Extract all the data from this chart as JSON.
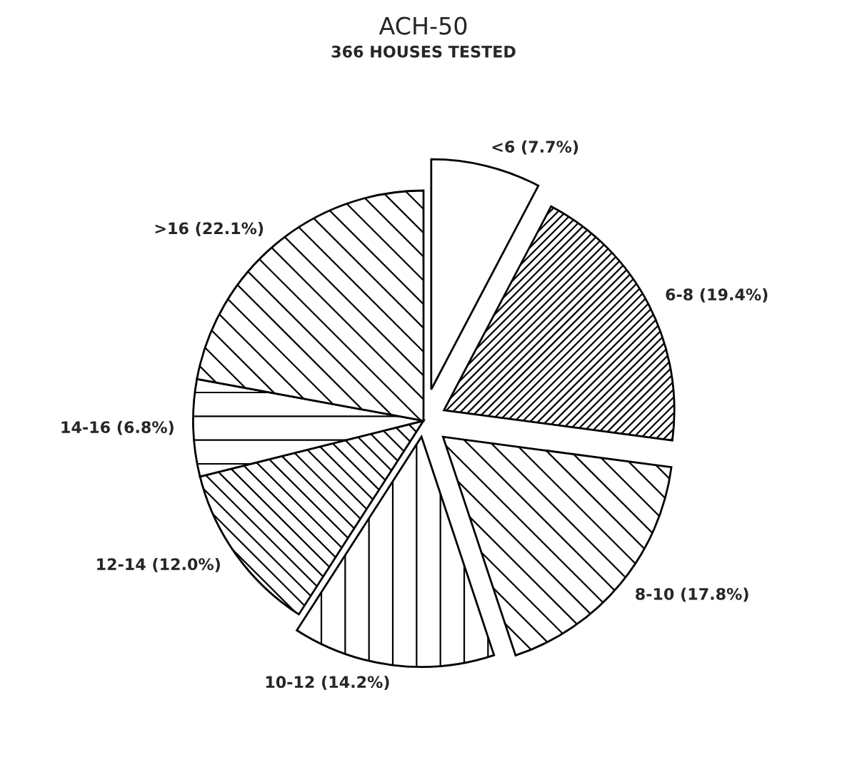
{
  "chart_data": {
    "type": "pie",
    "title": "ACH-50",
    "subtitle": "366 HOUSES TESTED",
    "categories": [
      "<6",
      "6-8",
      "8-10",
      "10-12",
      "12-14",
      "14-16",
      ">16"
    ],
    "values": [
      7.7,
      19.4,
      17.8,
      14.2,
      12.0,
      6.8,
      22.1
    ],
    "value_labels": [
      "(7.7%)",
      "(19.4%)",
      "(17.8%)",
      "(14.2%)",
      "(12.0%)",
      "(6.8%)",
      "(22.1%)"
    ]
  }
}
